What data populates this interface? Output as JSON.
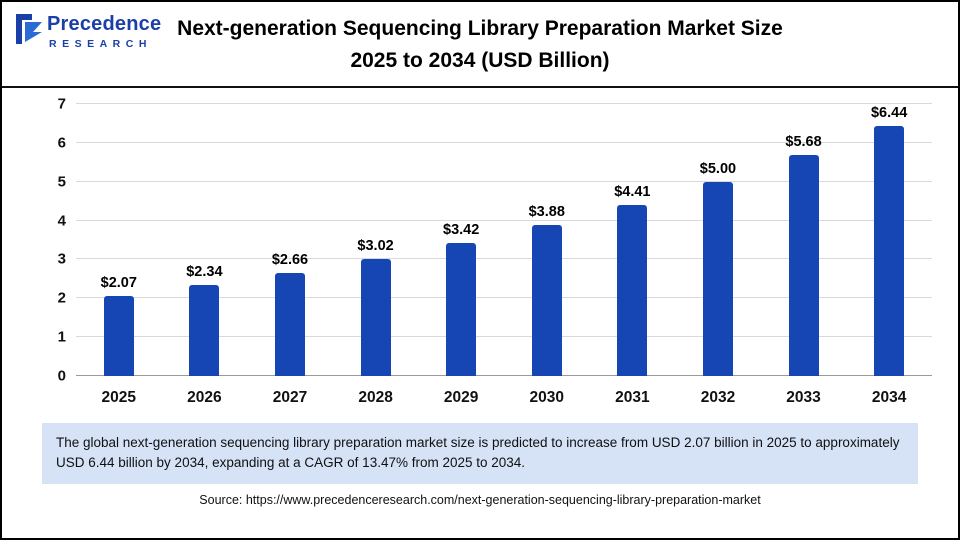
{
  "logo": {
    "name": "Precedence",
    "subtitle": "RESEARCH"
  },
  "header": {
    "title_line1": "Next-generation Sequencing Library Preparation Market Size",
    "title_line2": "2025 to 2034 (USD Billion)"
  },
  "chart_data": {
    "type": "bar",
    "title": "Next-generation Sequencing Library Preparation Market Size 2025 to 2034 (USD Billion)",
    "categories": [
      "2025",
      "2026",
      "2027",
      "2028",
      "2029",
      "2030",
      "2031",
      "2032",
      "2033",
      "2034"
    ],
    "values": [
      2.07,
      2.34,
      2.66,
      3.02,
      3.42,
      3.88,
      4.41,
      5.0,
      5.68,
      6.44
    ],
    "labels": [
      "$2.07",
      "$2.34",
      "$2.66",
      "$3.02",
      "$3.42",
      "$3.88",
      "$4.41",
      "$5.00",
      "$5.68",
      "$6.44"
    ],
    "xlabel": "",
    "ylabel": "",
    "ylim": [
      0,
      7
    ],
    "yticks": [
      0,
      1,
      2,
      3,
      4,
      5,
      6,
      7
    ],
    "grid": true,
    "legend": "none",
    "bar_color": "#1646b4"
  },
  "footer": {
    "summary": "The global next-generation sequencing library preparation market size is predicted to increase from USD 2.07 billion in 2025 to approximately USD 6.44 billion by 2034, expanding at a CAGR of 13.47% from 2025 to 2034.",
    "source": "Source: https://www.precedenceresearch.com/next-generation-sequencing-library-preparation-market"
  }
}
